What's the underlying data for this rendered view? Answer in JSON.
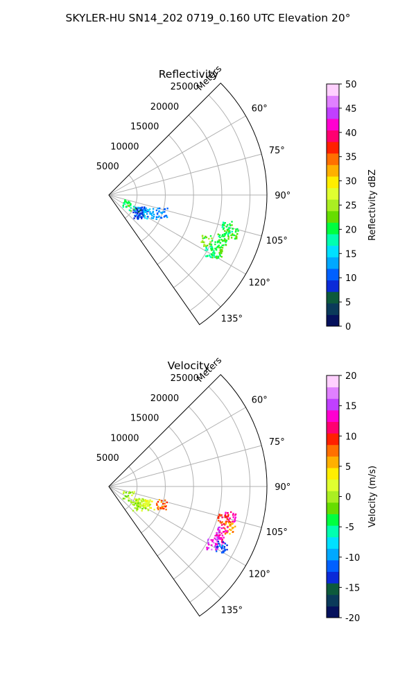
{
  "figure": {
    "title": "SKYLER-HU  SN14_202  0719_0.160 UTC Elevation 20°"
  },
  "chart_data": [
    {
      "type": "heatmap",
      "projection": "polar-sector",
      "title": "Reflectivity",
      "range_label": "Meters",
      "r_ticks": [
        5000,
        10000,
        15000,
        20000,
        25000
      ],
      "r_max": 28000,
      "azimuth_range_deg": [
        45,
        145
      ],
      "azimuth_ticks_deg": [
        60,
        75,
        90,
        105,
        120,
        135
      ],
      "grid": true,
      "colorbar": {
        "label": "Reflectivity dBZ",
        "min": 0,
        "max": 50,
        "ticks": [
          0,
          5,
          10,
          15,
          20,
          25,
          30,
          35,
          40,
          45,
          50
        ],
        "colormap": "pyart_HomeyerRainbow-like",
        "stops": [
          "#05115c",
          "#0a3a5a",
          "#0d5a3c",
          "#0b2ad8",
          "#0060ff",
          "#00a8ff",
          "#00e0ff",
          "#00ffb0",
          "#00ff40",
          "#66dd00",
          "#aaee22",
          "#e0ff30",
          "#ffee00",
          "#ffb000",
          "#ff7000",
          "#ff2000",
          "#ff0070",
          "#ff00d0",
          "#c040ff",
          "#e080ff",
          "#ffd0ff"
        ]
      },
      "echoes": [
        {
          "azimuth_deg": 116,
          "range_m": 6500,
          "value": 10
        },
        {
          "azimuth_deg": 119,
          "range_m": 6200,
          "value": 12
        },
        {
          "azimuth_deg": 122,
          "range_m": 6000,
          "value": 8
        },
        {
          "azimuth_deg": 114,
          "range_m": 7600,
          "value": 14
        },
        {
          "azimuth_deg": 117,
          "range_m": 3800,
          "value": 20
        },
        {
          "azimuth_deg": 109,
          "range_m": 9800,
          "value": 12
        },
        {
          "azimuth_deg": 105,
          "range_m": 21500,
          "value": 20
        },
        {
          "azimuth_deg": 107,
          "range_m": 22800,
          "value": 22
        },
        {
          "azimuth_deg": 110,
          "range_m": 21500,
          "value": 20
        },
        {
          "azimuth_deg": 114,
          "range_m": 21500,
          "value": 21
        },
        {
          "azimuth_deg": 118,
          "range_m": 21500,
          "value": 21
        },
        {
          "azimuth_deg": 115,
          "range_m": 19000,
          "value": 23
        },
        {
          "azimuth_deg": 119,
          "range_m": 20500,
          "value": 19
        }
      ]
    },
    {
      "type": "heatmap",
      "projection": "polar-sector",
      "title": "Velocity",
      "range_label": "Meters",
      "r_ticks": [
        5000,
        10000,
        15000,
        20000,
        25000
      ],
      "r_max": 28000,
      "azimuth_range_deg": [
        45,
        145
      ],
      "azimuth_ticks_deg": [
        60,
        75,
        90,
        105,
        120,
        135
      ],
      "grid": true,
      "colorbar": {
        "label": "Velocity (m/s)",
        "min": -20,
        "max": 20,
        "ticks": [
          -20,
          -15,
          -10,
          -5,
          0,
          5,
          10,
          15,
          20
        ],
        "colormap": "pyart_HomeyerRainbow-like",
        "stops": [
          "#05115c",
          "#0a3a5a",
          "#0d5a3c",
          "#0b2ad8",
          "#0060ff",
          "#00a8ff",
          "#00e0ff",
          "#00ffb0",
          "#00ff40",
          "#66dd00",
          "#aaee22",
          "#e0ff30",
          "#ffee00",
          "#ffb000",
          "#ff7000",
          "#ff2000",
          "#ff0070",
          "#ff00d0",
          "#c040ff",
          "#e080ff",
          "#ffd0ff"
        ]
      },
      "echoes": [
        {
          "azimuth_deg": 116,
          "range_m": 6500,
          "value": 1
        },
        {
          "azimuth_deg": 119,
          "range_m": 6200,
          "value": 1
        },
        {
          "azimuth_deg": 122,
          "range_m": 6000,
          "value": 0
        },
        {
          "azimuth_deg": 114,
          "range_m": 7600,
          "value": 2
        },
        {
          "azimuth_deg": 117,
          "range_m": 3800,
          "value": 0
        },
        {
          "azimuth_deg": 109,
          "range_m": 9800,
          "value": 8
        },
        {
          "azimuth_deg": 104,
          "range_m": 22000,
          "value": 12
        },
        {
          "azimuth_deg": 106,
          "range_m": 21000,
          "value": 9
        },
        {
          "azimuth_deg": 109,
          "range_m": 22500,
          "value": 6
        },
        {
          "azimuth_deg": 112,
          "range_m": 21500,
          "value": 14
        },
        {
          "azimuth_deg": 116,
          "range_m": 21500,
          "value": 13
        },
        {
          "azimuth_deg": 119,
          "range_m": 20800,
          "value": 15
        },
        {
          "azimuth_deg": 118,
          "range_m": 22500,
          "value": -12
        }
      ]
    }
  ]
}
